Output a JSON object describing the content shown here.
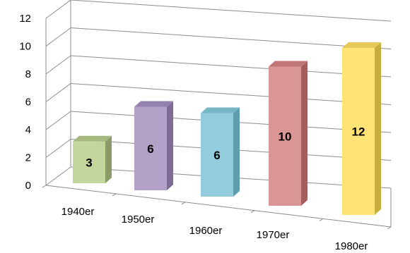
{
  "chart_data": {
    "type": "bar",
    "style": "3d-column",
    "categories": [
      "1940er",
      "1950er",
      "1960er",
      "1970er",
      "1980er"
    ],
    "values": [
      3,
      6,
      6,
      10,
      12
    ],
    "data_labels": [
      "3",
      "6",
      "6",
      "10",
      "12"
    ],
    "ylim": [
      0,
      12
    ],
    "yticks": [
      "0",
      "2",
      "4",
      "6",
      "8",
      "10",
      "12"
    ],
    "grid": true,
    "legend": "none",
    "colors": {
      "front": [
        "#c3d69b",
        "#b3a2c7",
        "#93cddd",
        "#d99694",
        "#ffe475"
      ],
      "side": [
        "#8a9a68",
        "#7d6c93",
        "#5f9fad",
        "#a55e5c",
        "#c8ae3f"
      ],
      "top": [
        "#a6b87e",
        "#9581ad",
        "#76b5c6",
        "#c07674",
        "#e6c957"
      ]
    }
  }
}
